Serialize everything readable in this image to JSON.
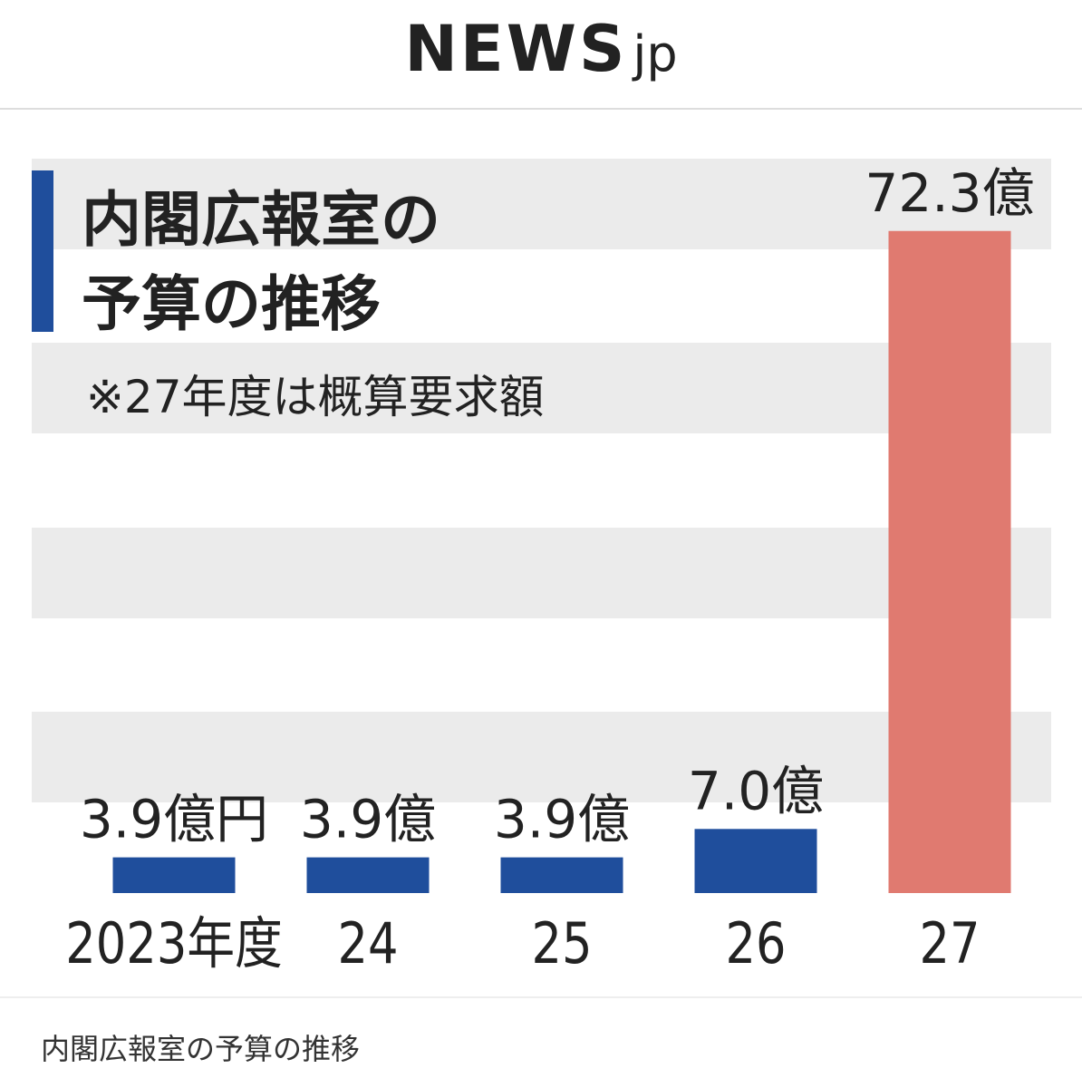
{
  "header": {
    "logo": "NEWS",
    "logo_suffix": "jp"
  },
  "chart_data": {
    "type": "bar",
    "title_lines": [
      "内閣広報室の",
      "予算の推移"
    ],
    "subtitle": "※27年度は概算要求額",
    "categories": [
      "2023年度",
      "24",
      "25",
      "26",
      "27"
    ],
    "values": [
      3.9,
      3.9,
      3.9,
      7.0,
      72.3
    ],
    "value_labels": [
      "3.9億円",
      "3.9億",
      "3.9億",
      "7.0億",
      "72.3億"
    ],
    "colors": [
      "#1f4e9c",
      "#1f4e9c",
      "#1f4e9c",
      "#1f4e9c",
      "#e07a70"
    ]
  },
  "caption": "内閣広報室の予算の推移"
}
